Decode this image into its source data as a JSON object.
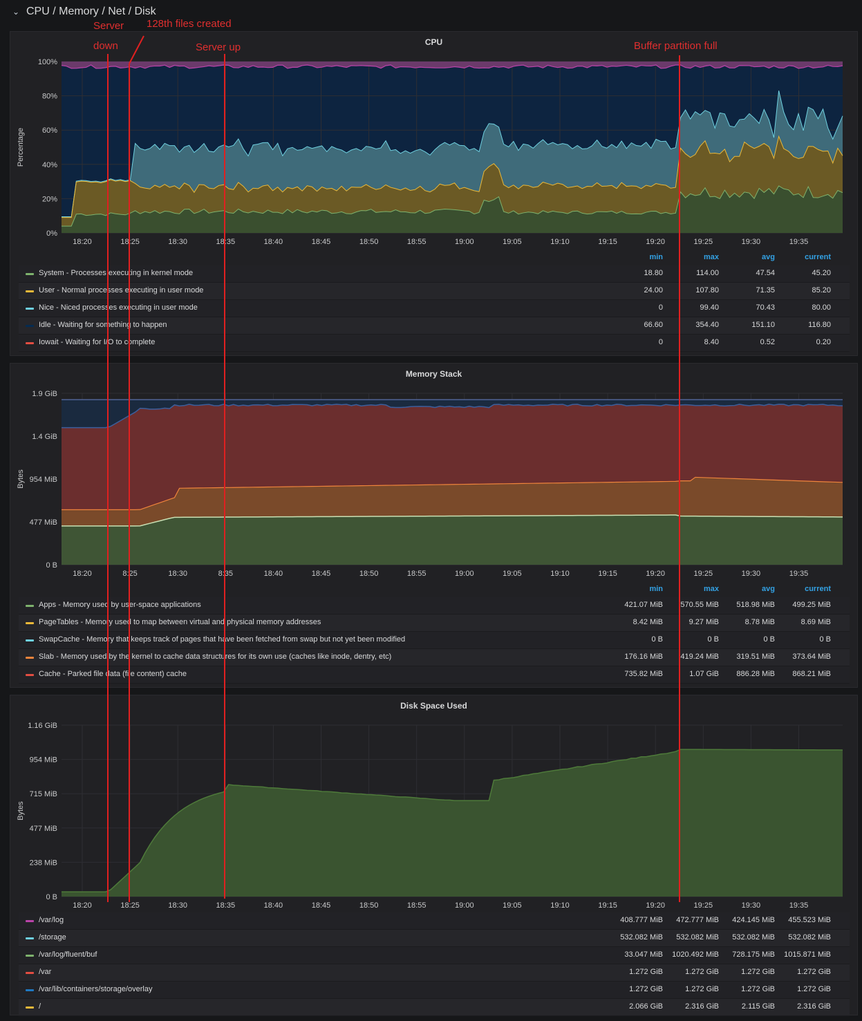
{
  "row": {
    "title": "CPU / Memory / Net / Disk"
  },
  "annotations": {
    "server_down_1": "Server",
    "server_down_2": "down",
    "files_created": "128th files created",
    "server_up": "Server up",
    "buffer_full": "Buffer partition full"
  },
  "legend_headers": {
    "min": "min",
    "max": "max",
    "avg": "avg",
    "current": "current"
  },
  "cpu": {
    "title": "CPU",
    "ylabel": "Percentage",
    "yticks": [
      "100%",
      "80%",
      "60%",
      "40%",
      "20%",
      "0%"
    ],
    "xticks": [
      "18:20",
      "18:25",
      "18:30",
      "18:35",
      "18:40",
      "18:45",
      "18:50",
      "18:55",
      "19:00",
      "19:05",
      "19:10",
      "19:15",
      "19:20",
      "19:25",
      "19:30",
      "19:35"
    ],
    "legend": [
      {
        "name": "System - Processes executing in kernel mode",
        "color": "#7eb26d",
        "min": "18.80",
        "max": "114.00",
        "avg": "47.54",
        "current": "45.20"
      },
      {
        "name": "User - Normal processes executing in user mode",
        "color": "#eab839",
        "min": "24.00",
        "max": "107.80",
        "avg": "71.35",
        "current": "85.20"
      },
      {
        "name": "Nice - Niced processes executing in user mode",
        "color": "#6ed0e0",
        "min": "0",
        "max": "99.40",
        "avg": "70.43",
        "current": "80.00"
      },
      {
        "name": "Idle - Waiting for something to happen",
        "color": "#052b51",
        "min": "66.60",
        "max": "354.40",
        "avg": "151.10",
        "current": "116.80"
      },
      {
        "name": "Iowait - Waiting for I/O to complete",
        "color": "#e24d42",
        "min": "0",
        "max": "8.40",
        "avg": "0.52",
        "current": "0.20"
      }
    ]
  },
  "memory": {
    "title": "Memory Stack",
    "ylabel": "Bytes",
    "yticks": [
      "1.9 GiB",
      "1.4 GiB",
      "954 MiB",
      "477 MiB",
      "0 B"
    ],
    "xticks": [
      "18:20",
      "8:25",
      "18:30",
      "8:35",
      "18:40",
      "18:45",
      "18:50",
      "18:55",
      "19:00",
      "19:05",
      "19:10",
      "19:15",
      "19:20",
      "19:25",
      "19:30",
      "19:35"
    ],
    "legend": [
      {
        "name": "Apps - Memory used by user-space applications",
        "color": "#7eb26d",
        "min": "421.07 MiB",
        "max": "570.55 MiB",
        "avg": "518.98 MiB",
        "current": "499.25 MiB"
      },
      {
        "name": "PageTables - Memory used to map between virtual and physical memory addresses",
        "color": "#eab839",
        "min": "8.42 MiB",
        "max": "9.27 MiB",
        "avg": "8.78 MiB",
        "current": "8.69 MiB"
      },
      {
        "name": "SwapCache - Memory that keeps track of pages that have been fetched from swap but not yet been modified",
        "color": "#6ed0e0",
        "min": "0 B",
        "max": "0 B",
        "avg": "0 B",
        "current": "0 B"
      },
      {
        "name": "Slab - Memory used by the kernel to cache data structures for its own use (caches like inode, dentry, etc)",
        "color": "#ef843c",
        "min": "176.16 MiB",
        "max": "419.24 MiB",
        "avg": "319.51 MiB",
        "current": "373.64 MiB"
      },
      {
        "name": "Cache - Parked file data (file content) cache",
        "color": "#e24d42",
        "min": "735.82 MiB",
        "max": "1.07 GiB",
        "avg": "886.28 MiB",
        "current": "868.21 MiB"
      }
    ]
  },
  "disk": {
    "title": "Disk Space Used",
    "ylabel": "Bytes",
    "yticks": [
      "1.16 GiB",
      "954 MiB",
      "715 MiB",
      "477 MiB",
      "238 MiB",
      "0 B"
    ],
    "xticks": [
      "18:20",
      "18:25",
      "18:30",
      "18:35",
      "18:40",
      "18:45",
      "18:50",
      "18:55",
      "19:00",
      "19:05",
      "19:10",
      "19:15",
      "19:20",
      "19:25",
      "19:30",
      "19:35"
    ],
    "legend": [
      {
        "name": "/var/log",
        "color": "#ba43a9",
        "min": "408.777 MiB",
        "max": "472.777 MiB",
        "avg": "424.145 MiB",
        "current": "455.523 MiB"
      },
      {
        "name": "/storage",
        "color": "#6ed0e0",
        "min": "532.082 MiB",
        "max": "532.082 MiB",
        "avg": "532.082 MiB",
        "current": "532.082 MiB"
      },
      {
        "name": "/var/log/fluent/buf",
        "color": "#7eb26d",
        "min": "33.047 MiB",
        "max": "1020.492 MiB",
        "avg": "728.175 MiB",
        "current": "1015.871 MiB"
      },
      {
        "name": "/var",
        "color": "#e24d42",
        "min": "1.272 GiB",
        "max": "1.272 GiB",
        "avg": "1.272 GiB",
        "current": "1.272 GiB"
      },
      {
        "name": "/var/lib/containers/storage/overlay",
        "color": "#1f78c1",
        "min": "1.272 GiB",
        "max": "1.272 GiB",
        "avg": "1.272 GiB",
        "current": "1.272 GiB"
      },
      {
        "name": "/",
        "color": "#eab839",
        "min": "2.066 GiB",
        "max": "2.316 GiB",
        "avg": "2.115 GiB",
        "current": "2.316 GiB"
      }
    ]
  }
}
